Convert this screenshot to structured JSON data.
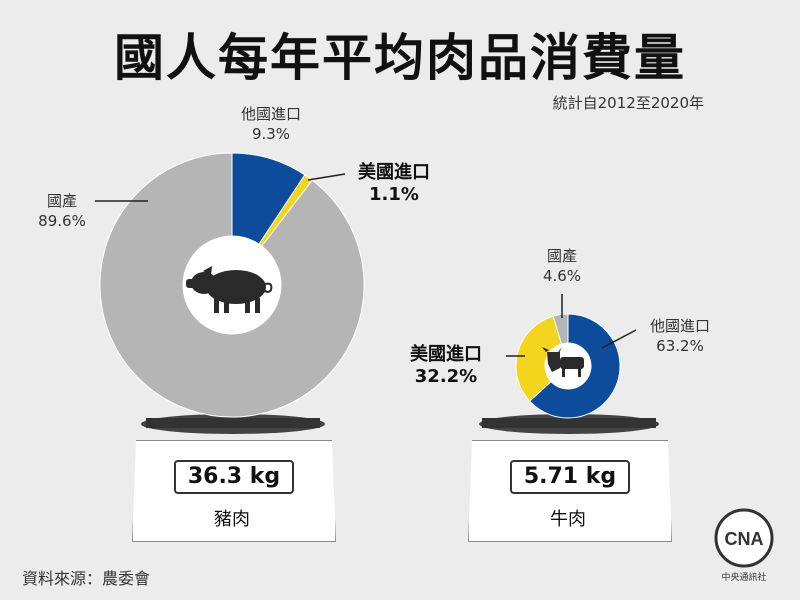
{
  "title": "國人每年平均肉品消費量",
  "subtitle": "統計自2012至2020年",
  "colors": {
    "domestic": "#b5b5b5",
    "us_import": "#f2d51c",
    "other_import": "#0d4c9b",
    "dark": "#333333"
  },
  "chart_data": [
    {
      "type": "pie",
      "name": "豬肉",
      "weight": "36.3 kg",
      "slices": [
        {
          "label": "他國進口",
          "value": 9.3,
          "display": "9.3%",
          "color": "#0d4c9b"
        },
        {
          "label": "美國進口",
          "value": 1.1,
          "display": "1.1%",
          "color": "#f2d51c"
        },
        {
          "label": "國產",
          "value": 89.6,
          "display": "89.6%",
          "color": "#b5b5b5"
        }
      ],
      "icon": "pig-icon"
    },
    {
      "type": "pie",
      "name": "牛肉",
      "weight": "5.71 kg",
      "slices": [
        {
          "label": "他國進口",
          "value": 63.2,
          "display": "63.2%",
          "color": "#0d4c9b"
        },
        {
          "label": "美國進口",
          "value": 32.2,
          "display": "32.2%",
          "color": "#f2d51c"
        },
        {
          "label": "國產",
          "value": 4.6,
          "display": "4.6%",
          "color": "#b5b5b5"
        }
      ],
      "icon": "cow-icon"
    }
  ],
  "source": "資料來源：農委會",
  "logo": {
    "text": "中央通訊社",
    "mark": "CNA"
  }
}
